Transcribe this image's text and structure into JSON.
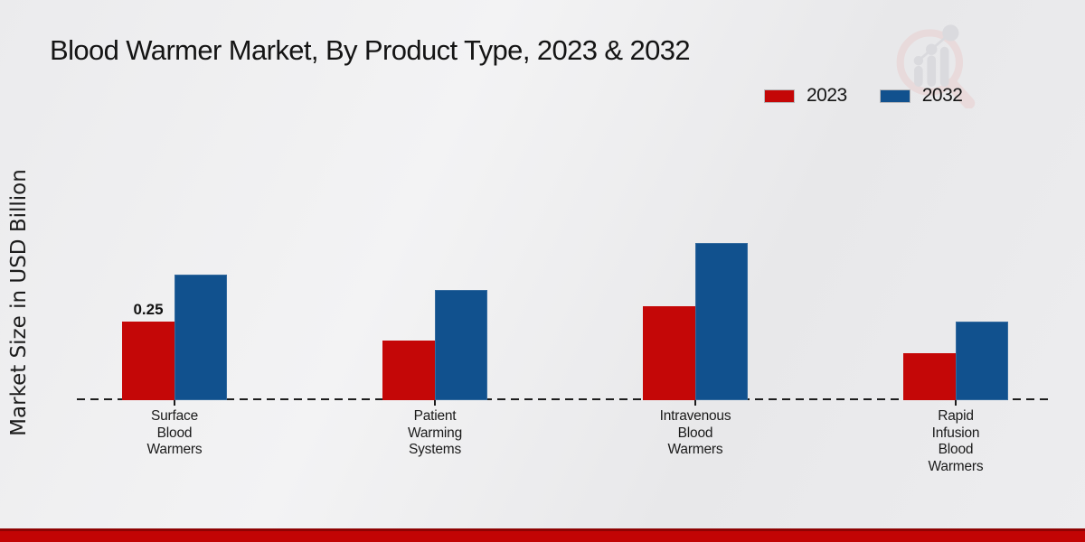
{
  "title": "Blood Warmer Market, By Product Type, 2023 & 2032",
  "y_axis_label": "Market Size in USD Billion",
  "legend": {
    "position": "top-right",
    "items": [
      {
        "label": "2023",
        "color": "#c40707"
      },
      {
        "label": "2032",
        "color": "#11518e"
      }
    ]
  },
  "watermark": {
    "name": "market-research-future-logo",
    "ring_color": "#e9cfcf",
    "bars_color": "#cfcfd4"
  },
  "colors": {
    "bar_red_2023": "#c40707",
    "bar_blue_2032": "#11518e",
    "footer_dark_red": "#8e0303",
    "footer_bright_red": "#c20404",
    "background": "#ededef",
    "axis_dash": "#1d1d1d"
  },
  "chart_data": {
    "type": "bar",
    "title": "Blood Warmer Market, By Product Type, 2023 & 2032",
    "xlabel": "",
    "ylabel": "Market Size in USD Billion",
    "categories": [
      "Surface Blood Warmers",
      "Patient Warming Systems",
      "Intravenous Blood Warmers",
      "Rapid Infusion Blood Warmers"
    ],
    "series": [
      {
        "name": "2023",
        "color": "#c40707",
        "values": [
          0.25,
          0.19,
          0.3,
          0.15
        ]
      },
      {
        "name": "2032",
        "color": "#11518e",
        "values": [
          0.4,
          0.35,
          0.5,
          0.25
        ]
      }
    ],
    "data_labels": [
      {
        "series": "2023",
        "category_index": 0,
        "text": "0.25"
      }
    ],
    "ylim": [
      0,
      0.55
    ],
    "grid": false,
    "y_axis_ticks_visible": false,
    "baseline_style": "dashed",
    "legend_position": "top-right"
  }
}
